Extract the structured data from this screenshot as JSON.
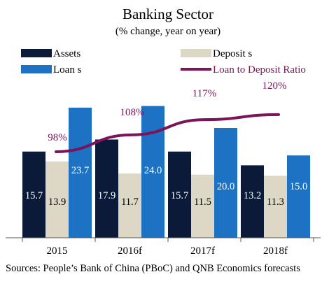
{
  "chart_data": {
    "type": "bar",
    "title": "Banking Sector",
    "subtitle": "(% change, year on year)",
    "categories": [
      "2015",
      "2016f",
      "2017f",
      "2018f"
    ],
    "series": [
      {
        "name": "Assets",
        "type": "bar",
        "color": "#0b1a38",
        "label_color": "#ffffff",
        "values": [
          15.7,
          17.9,
          15.7,
          13.2
        ]
      },
      {
        "name": "Deposit s",
        "type": "bar",
        "color": "#ddd8c6",
        "label_color": "#000000",
        "values": [
          13.9,
          11.7,
          11.5,
          11.3
        ]
      },
      {
        "name": "Loan s",
        "type": "bar",
        "color": "#1d72c4",
        "label_color": "#ffffff",
        "values": [
          23.7,
          24.0,
          20.0,
          15.0
        ]
      },
      {
        "name": "Loan to Deposit Ratio",
        "type": "line",
        "color": "#7b1459",
        "values": [
          98,
          108,
          117,
          120
        ],
        "labels": [
          "98%",
          "108%",
          "117%",
          "120%"
        ]
      }
    ],
    "legend_position": "top",
    "grid": false,
    "source": "Sources: People’s Bank of China (PBoC) and QNB Economics forecasts"
  }
}
